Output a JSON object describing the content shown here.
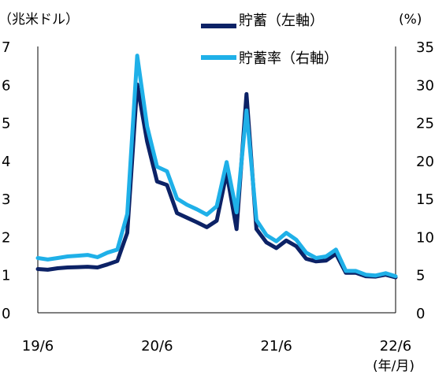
{
  "chart_data": {
    "type": "line",
    "left_axis_unit": "（兆米ドル）",
    "right_axis_unit": "(%)",
    "x_unit": "(年/月)",
    "x_tick_labels": [
      "19/6",
      "20/6",
      "21/6",
      "22/6"
    ],
    "y_left_ticks": [
      0,
      1,
      2,
      3,
      4,
      5,
      6,
      7
    ],
    "y_right_ticks": [
      0,
      5,
      10,
      15,
      20,
      25,
      30,
      35
    ],
    "y_left_range": [
      0,
      7
    ],
    "y_right_range": [
      0,
      35
    ],
    "x_range": [
      "2019-06",
      "2022-06"
    ],
    "grid": false,
    "legend_position": "top-right",
    "series": [
      {
        "name": "貯蓄（左軸）",
        "axis": "left",
        "color": "#0c2266",
        "x": [
          "2019-06",
          "2019-07",
          "2019-08",
          "2019-09",
          "2019-10",
          "2019-11",
          "2019-12",
          "2020-01",
          "2020-02",
          "2020-03",
          "2020-04",
          "2020-05",
          "2020-06",
          "2020-07",
          "2020-08",
          "2020-09",
          "2020-10",
          "2020-11",
          "2020-12",
          "2021-01",
          "2021-02",
          "2021-03",
          "2021-04",
          "2021-05",
          "2021-06",
          "2021-07",
          "2021-08",
          "2021-09",
          "2021-10",
          "2021-11",
          "2021-12",
          "2022-01",
          "2022-02",
          "2022-03",
          "2022-04",
          "2022-05",
          "2022-06"
        ],
        "values": [
          1.15,
          1.13,
          1.17,
          1.19,
          1.2,
          1.21,
          1.19,
          1.27,
          1.36,
          2.1,
          6.0,
          4.5,
          3.45,
          3.36,
          2.62,
          2.5,
          2.38,
          2.25,
          2.42,
          3.68,
          2.2,
          5.75,
          2.2,
          1.85,
          1.7,
          1.9,
          1.75,
          1.42,
          1.35,
          1.37,
          1.55,
          1.05,
          1.05,
          0.96,
          0.95,
          1.0,
          0.93
        ]
      },
      {
        "name": "貯蓄率（右軸）",
        "axis": "right",
        "color": "#1fb0e8",
        "x": [
          "2019-06",
          "2019-07",
          "2019-08",
          "2019-09",
          "2019-10",
          "2019-11",
          "2019-12",
          "2020-01",
          "2020-02",
          "2020-03",
          "2020-04",
          "2020-05",
          "2020-06",
          "2020-07",
          "2020-08",
          "2020-09",
          "2020-10",
          "2020-11",
          "2020-12",
          "2021-01",
          "2021-02",
          "2021-03",
          "2021-04",
          "2021-05",
          "2021-06",
          "2021-07",
          "2021-08",
          "2021-09",
          "2021-10",
          "2021-11",
          "2021-12",
          "2022-01",
          "2022-02",
          "2022-03",
          "2022-04",
          "2022-05",
          "2022-06"
        ],
        "values": [
          7.2,
          7.0,
          7.2,
          7.4,
          7.5,
          7.6,
          7.3,
          7.9,
          8.3,
          13.0,
          33.8,
          24.5,
          19.2,
          18.6,
          15.0,
          14.2,
          13.6,
          12.9,
          14.0,
          19.8,
          13.2,
          26.6,
          12.2,
          10.2,
          9.4,
          10.5,
          9.6,
          7.9,
          7.2,
          7.4,
          8.3,
          5.5,
          5.5,
          5.0,
          4.9,
          5.2,
          4.8
        ]
      }
    ]
  }
}
